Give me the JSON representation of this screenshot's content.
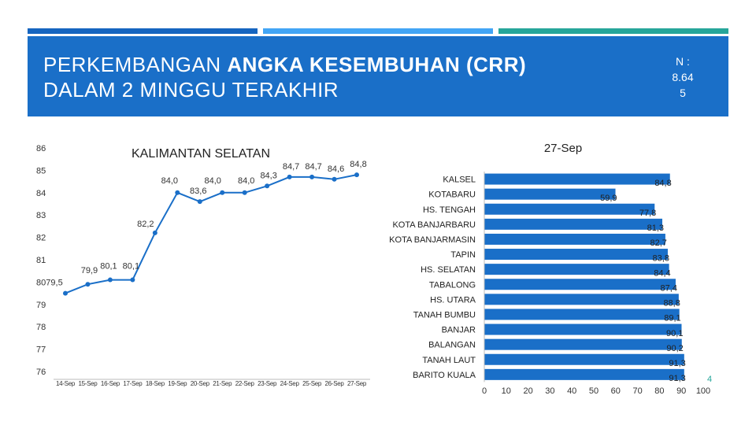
{
  "header": {
    "title_line1_regular": "PERKEMBANGAN ",
    "title_line1_bold": "ANGKA KESEMBUHAN (CRR)",
    "title_line2": "DALAM 2 MINGGU TERAKHIR",
    "note_line1": "N :",
    "note_line2": "8.64",
    "note_line3": "5"
  },
  "colors": {
    "header_bg": "#1a6fc8",
    "topbar_1": "#1565c0",
    "topbar_2": "#42a5f5",
    "topbar_3": "#26a69a",
    "series": "#1a6fc8"
  },
  "page_number": "4",
  "chart_data": [
    {
      "type": "line",
      "title": "KALIMANTAN SELATAN",
      "categories": [
        "14-Sep",
        "15-Sep",
        "16-Sep",
        "17-Sep",
        "18-Sep",
        "19-Sep",
        "20-Sep",
        "21-Sep",
        "22-Sep",
        "23-Sep",
        "24-Sep",
        "25-Sep",
        "26-Sep",
        "27-Sep"
      ],
      "values": [
        79.5,
        79.9,
        80.1,
        80.1,
        82.2,
        84.0,
        83.6,
        84.0,
        84.0,
        84.3,
        84.7,
        84.7,
        84.6,
        84.8
      ],
      "value_labels": [
        "79,5",
        "79,9",
        "80,1",
        "80,1",
        "82,2",
        "84,0",
        "83,6",
        "84,0",
        "84,0",
        "84,3",
        "84,7",
        "84,7",
        "84,6",
        "84,8"
      ],
      "ylim": [
        76,
        86
      ],
      "yticks": [
        "76",
        "77",
        "78",
        "79",
        "80",
        "81",
        "82",
        "83",
        "84",
        "85",
        "86"
      ],
      "grid": false,
      "legend": false
    },
    {
      "type": "bar",
      "orientation": "horizontal",
      "title": "27-Sep",
      "categories": [
        "KALSEL",
        "KOTABARU",
        "HS. TENGAH",
        "KOTA BANJARBARU",
        "KOTA BANJARMASIN",
        "TAPIN",
        "HS. SELATAN",
        "TABALONG",
        "HS. UTARA",
        "TANAH BUMBU",
        "BANJAR",
        "BALANGAN",
        "TANAH LAUT",
        "BARITO KUALA"
      ],
      "values": [
        84.8,
        59.9,
        77.8,
        81.3,
        82.7,
        83.8,
        84.4,
        87.4,
        88.8,
        89.1,
        90.1,
        90.2,
        91.3,
        91.3
      ],
      "value_labels": [
        "84,8",
        "59,9",
        "77,8",
        "81,3",
        "82,7",
        "83,8",
        "84,4",
        "87,4",
        "88,8",
        "89,1",
        "90,1",
        "90,2",
        "91,3",
        "91,3"
      ],
      "xlim": [
        0,
        100
      ],
      "xticks": [
        "0",
        "10",
        "20",
        "30",
        "40",
        "50",
        "60",
        "70",
        "80",
        "90",
        "100"
      ],
      "grid": false,
      "legend": false
    }
  ]
}
